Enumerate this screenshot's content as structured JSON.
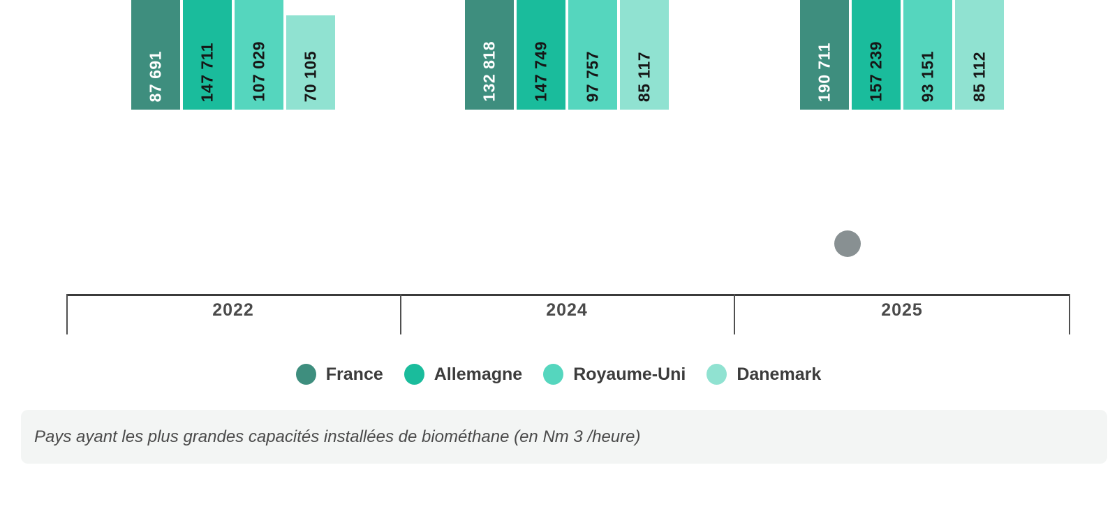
{
  "chart_data": {
    "type": "bar",
    "title": "",
    "caption": "Pays ayant les plus grandes capacités installées de biométhane (en Nm 3 /heure)",
    "categories": [
      "2022",
      "2024",
      "2025"
    ],
    "series": [
      {
        "name": "France",
        "color": "#3E8E7E",
        "label_color": "#FFFFFF",
        "values": [
          87691,
          132818,
          190711
        ],
        "labels": [
          "87 691",
          "132 818",
          "190 711"
        ]
      },
      {
        "name": "Allemagne",
        "color": "#1ABC9C",
        "label_color": "#161616",
        "values": [
          147711,
          147749,
          157239
        ],
        "labels": [
          "147 711",
          "147 749",
          "157 239"
        ]
      },
      {
        "name": "Royaume-Uni",
        "color": "#55D6BE",
        "label_color": "#161616",
        "values": [
          107029,
          97757,
          93151
        ],
        "labels": [
          "107 029",
          "97 757",
          "93 151"
        ]
      },
      {
        "name": "Danemark",
        "color": "#90E2D1",
        "label_color": "#161616",
        "values": [
          70105,
          85117,
          85112
        ],
        "labels": [
          "70 105",
          "85 117",
          "85 112"
        ]
      }
    ],
    "xlabel": "",
    "ylabel": "",
    "ylim": [
      0,
      190711
    ],
    "grid": false,
    "legend_position": "bottom",
    "axis_color": "#3b3b3b",
    "x_label_color": "#4a4a4a"
  }
}
